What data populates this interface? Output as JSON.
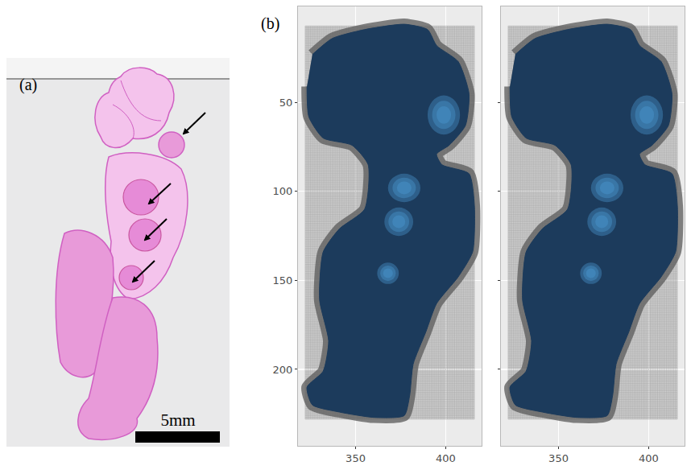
{
  "panel_a": {
    "label": "(a)",
    "scale_bar_label": "5mm"
  },
  "panel_b_label": "(b)",
  "chart_data": [
    {
      "type": "spatial",
      "xlim": [
        318,
        420
      ],
      "ylim": [
        243,
        -4
      ],
      "xticks": [
        350,
        400
      ],
      "yticks": [
        50,
        100,
        150,
        200
      ],
      "grid": true,
      "lattice": {
        "xlim": [
          322,
          416
        ],
        "ylim": [
          7,
          228
        ],
        "step": 1
      },
      "tissue": {
        "color": "#1c3b5c",
        "x": [
          326,
          337,
          355,
          377,
          390,
          395,
          407,
          413,
          411,
          402,
          395,
          398,
          413,
          416,
          415,
          407,
          395,
          389,
          382,
          380,
          377,
          360,
          341,
          326,
          323,
          332,
          335,
          330,
          332,
          341,
          355,
          357,
          348,
          332,
          324,
          323
        ],
        "y": [
          23,
          14,
          9,
          6,
          9,
          18,
          27,
          45,
          63,
          74,
          79,
          85,
          90,
          108,
          134,
          148,
          163,
          179,
          197,
          215,
          226,
          227,
          224,
          220,
          210,
          201,
          184,
          161,
          134,
          121,
          110,
          85,
          74,
          70,
          58,
          41
        ]
      },
      "spots": {
        "color": "#4c9ad6",
        "x": [
          399,
          377,
          374,
          368
        ],
        "y": [
          57,
          98,
          117,
          146
        ],
        "rx": [
          9,
          9,
          8,
          6
        ],
        "ry": [
          11,
          8,
          8,
          6
        ]
      }
    },
    {
      "type": "spatial",
      "xlim": [
        318,
        420
      ],
      "ylim": [
        243,
        -4
      ],
      "xticks": [
        350,
        400
      ],
      "yticks": [
        50,
        100,
        150,
        200
      ],
      "grid": true,
      "tick_labels": "x",
      "lattice": {
        "xlim": [
          322,
          416
        ],
        "ylim": [
          7,
          228
        ],
        "step": 1
      },
      "tissue": {
        "color": "#1c3b5c",
        "x": [
          326,
          337,
          355,
          377,
          390,
          395,
          407,
          413,
          411,
          402,
          395,
          398,
          413,
          416,
          415,
          407,
          395,
          389,
          382,
          380,
          377,
          360,
          341,
          326,
          323,
          332,
          335,
          330,
          332,
          341,
          355,
          357,
          348,
          332,
          324,
          323
        ],
        "y": [
          23,
          14,
          9,
          6,
          9,
          18,
          27,
          45,
          63,
          74,
          79,
          85,
          90,
          108,
          134,
          148,
          163,
          179,
          197,
          215,
          226,
          227,
          224,
          220,
          210,
          201,
          184,
          161,
          134,
          121,
          110,
          85,
          74,
          70,
          58,
          41
        ]
      },
      "spots": {
        "color": "#4c9ad6",
        "x": [
          399,
          377,
          374,
          368
        ],
        "y": [
          57,
          98,
          117,
          146
        ],
        "rx": [
          9,
          9,
          8,
          6
        ],
        "ry": [
          11,
          8,
          8,
          6
        ]
      }
    }
  ]
}
